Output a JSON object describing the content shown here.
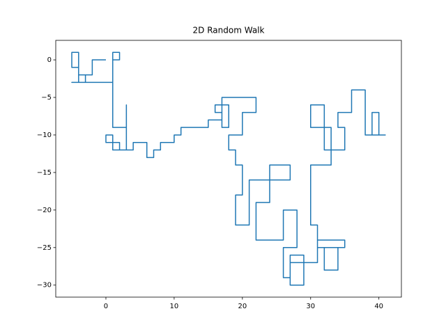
{
  "chart_data": {
    "type": "line",
    "title": "2D Random Walk",
    "x": [
      0,
      -2,
      -2,
      -4,
      -4,
      -3,
      -3,
      -4,
      -4,
      -5,
      -5,
      -4,
      -4,
      -5,
      1,
      1,
      2,
      2,
      1,
      1,
      3,
      3,
      3,
      2,
      2,
      0,
      0,
      1,
      1,
      4,
      4,
      6,
      6,
      7,
      7,
      8,
      8,
      10,
      10,
      11,
      11,
      15,
      15,
      17,
      17,
      16,
      16,
      18,
      18,
      17,
      17,
      22,
      22,
      20,
      20,
      18,
      18,
      19,
      19,
      20,
      20,
      19,
      19,
      21,
      21,
      27,
      27,
      24,
      24,
      22,
      22,
      26,
      26,
      28,
      28,
      26,
      26,
      27,
      27,
      29,
      29,
      27,
      27,
      31,
      31,
      35,
      35,
      32,
      32,
      34,
      34,
      31,
      31,
      30,
      30,
      33,
      33,
      30,
      30,
      32,
      32,
      35,
      35,
      34,
      34,
      36,
      36,
      38,
      38,
      40,
      40,
      39,
      39,
      41
    ],
    "series": [
      {
        "color": "#1f77b4",
        "values": [
          0,
          0,
          -2,
          -2,
          -3,
          -3,
          -2,
          -2,
          1,
          1,
          -1,
          -1,
          -3,
          -3,
          -3,
          1,
          1,
          0,
          0,
          -9,
          -9,
          -6,
          -12,
          -12,
          -11,
          -11,
          -10,
          -10,
          -12,
          -12,
          -11,
          -11,
          -13,
          -13,
          -12,
          -12,
          -11,
          -11,
          -10,
          -10,
          -9,
          -9,
          -8,
          -8,
          -7,
          -7,
          -6,
          -6,
          -9,
          -9,
          -5,
          -5,
          -7,
          -7,
          -10,
          -10,
          -12,
          -12,
          -14,
          -14,
          -18,
          -18,
          -22,
          -22,
          -16,
          -16,
          -14,
          -14,
          -19,
          -19,
          -24,
          -24,
          -20,
          -20,
          -25,
          -25,
          -29,
          -29,
          -26,
          -26,
          -30,
          -30,
          -27,
          -27,
          -24,
          -24,
          -25,
          -25,
          -28,
          -28,
          -25,
          -25,
          -22,
          -22,
          -14,
          -14,
          -9,
          -9,
          -6,
          -6,
          -12,
          -12,
          -9,
          -9,
          -7,
          -7,
          -4,
          -4,
          -10,
          -10,
          -7,
          -7,
          -10,
          -10
        ]
      }
    ],
    "xlim": [
      -7.35,
      43.3
    ],
    "ylim": [
      -31.6,
      2.6
    ],
    "xticks": [
      0,
      10,
      20,
      30,
      40
    ],
    "yticks": [
      0,
      {
        "value": -5,
        "label": "−5"
      },
      {
        "value": -10,
        "label": "−10"
      },
      {
        "value": -15,
        "label": "−15"
      },
      {
        "value": -20,
        "label": "−20"
      },
      {
        "value": -25,
        "label": "−25"
      },
      {
        "value": -30,
        "label": "−30"
      }
    ]
  }
}
